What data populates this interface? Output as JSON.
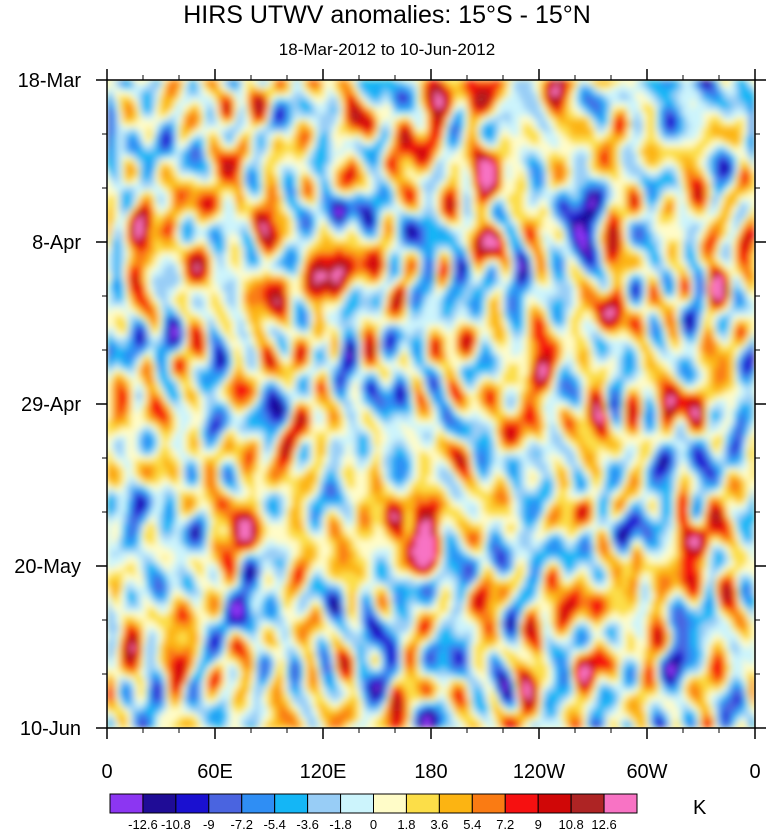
{
  "chart_data": {
    "type": "heatmap",
    "title": "HIRS UTWV anomalies: 15°S - 15°N",
    "subtitle": "18-Mar-2012 to 10-Jun-2012",
    "units": "K",
    "x_axis": {
      "label": "",
      "ticks": [
        "0",
        "60E",
        "120E",
        "180",
        "120W",
        "60W",
        "0"
      ],
      "range_deg_east": [
        0,
        360
      ]
    },
    "y_axis": {
      "label": "",
      "ticks": [
        "18-Mar",
        "8-Apr",
        "29-Apr",
        "20-May",
        "10-Jun"
      ],
      "range": [
        "18-Mar-2012",
        "10-Jun-2012"
      ],
      "reversed": true
    },
    "colorbar": {
      "levels": [
        "-12.6",
        "-10.8",
        "-9",
        "-7.2",
        "-5.4",
        "-3.6",
        "-1.8",
        "0",
        "1.8",
        "3.6",
        "5.4",
        "7.2",
        "9",
        "10.8",
        "12.6"
      ],
      "colors": [
        "#8c36f2",
        "#1f0c96",
        "#1a10d0",
        "#4a64e0",
        "#2f8ef4",
        "#14b6f6",
        "#98cdf6",
        "#ccf4fc",
        "#fffcc8",
        "#fcde48",
        "#fcb412",
        "#fa7b13",
        "#f61010",
        "#d00707",
        "#ae2424",
        "#f873c4"
      ]
    },
    "features": [
      {
        "lon": 70,
        "date": "21-Mar",
        "value": 10.0
      },
      {
        "lon": 206,
        "date": "19-Mar",
        "value": 12.8
      },
      {
        "lon": 85,
        "date": "7-Apr",
        "value": 9.5
      },
      {
        "lon": 150,
        "date": "9-Apr",
        "value": 8.5
      },
      {
        "lon": 15,
        "date": "4-Apr",
        "value": 8.0
      },
      {
        "lon": 258,
        "date": "5-Apr",
        "value": -11.0
      },
      {
        "lon": 324,
        "date": "29-Apr",
        "value": 9.5
      },
      {
        "lon": 336,
        "date": "15-May",
        "value": 10.0
      },
      {
        "lon": 235,
        "date": "2-Jun",
        "value": 10.5
      },
      {
        "lon": 218,
        "date": "25-May",
        "value": 9.0
      },
      {
        "lon": 20,
        "date": "30-Apr",
        "value": 8.5
      },
      {
        "lon": 75,
        "date": "18-May",
        "value": 8.0
      },
      {
        "lon": 160,
        "date": "30-May",
        "value": -6.5
      },
      {
        "lon": 60,
        "date": "2-Jun",
        "value": -7.0
      }
    ]
  }
}
